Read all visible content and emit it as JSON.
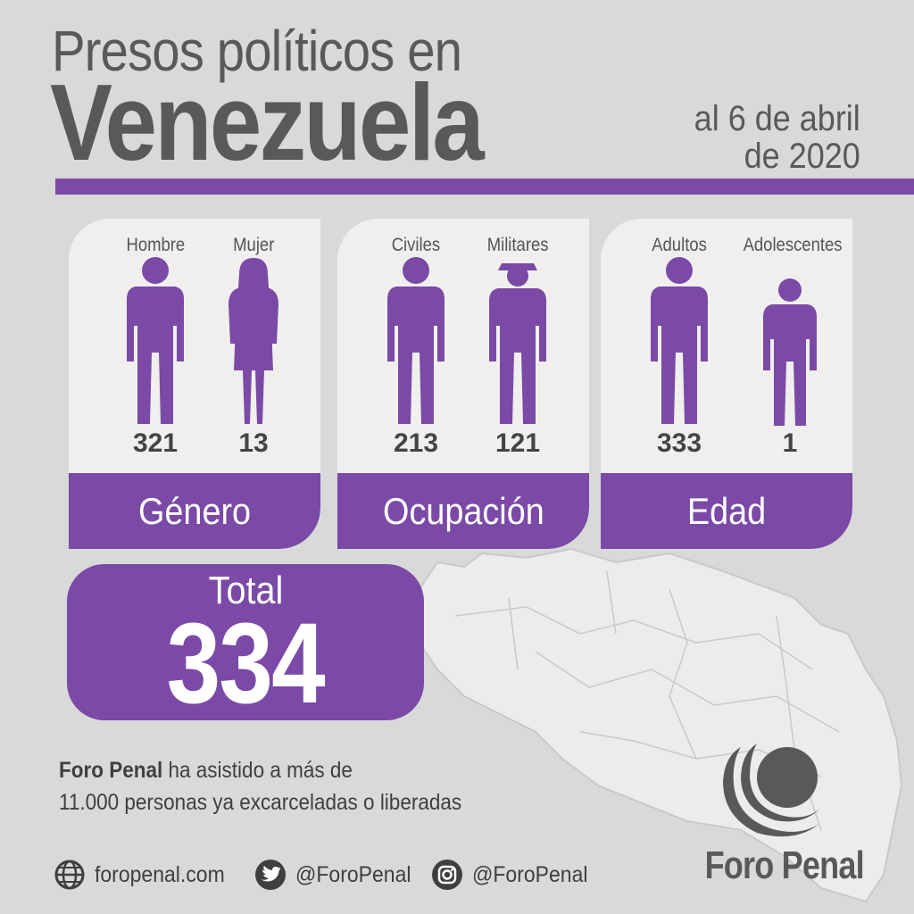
{
  "header": {
    "title_line1": "Presos políticos en",
    "title_line2": "Venezuela",
    "date_line1": "al 6 de abril",
    "date_line2": "de 2020"
  },
  "colors": {
    "accent": "#7a4aa6",
    "background": "#d9d9d9",
    "card": "#f0efee",
    "text": "#595959"
  },
  "cards": [
    {
      "label": "Género",
      "figures": [
        {
          "label": "Hombre",
          "value": "321",
          "icon": "man-silhouette-icon"
        },
        {
          "label": "Mujer",
          "value": "13",
          "icon": "woman-silhouette-icon"
        }
      ]
    },
    {
      "label": "Ocupación",
      "figures": [
        {
          "label": "Civiles",
          "value": "213",
          "icon": "civilian-silhouette-icon"
        },
        {
          "label": "Militares",
          "value": "121",
          "icon": "soldier-silhouette-icon"
        }
      ]
    },
    {
      "label": "Edad",
      "figures": [
        {
          "label": "Adultos",
          "value": "333",
          "icon": "adult-silhouette-icon"
        },
        {
          "label": "Adolescentes",
          "value": "1",
          "icon": "teen-silhouette-icon"
        }
      ]
    }
  ],
  "total": {
    "label": "Total",
    "value": "334"
  },
  "note": {
    "bold": "Foro Penal",
    "line1_rest": " ha asistido a más de",
    "line2": "11.000 personas ya excarceladas o liberadas"
  },
  "social": {
    "website": "foropenal.com",
    "twitter": "@ForoPenal",
    "instagram": "@ForoPenal"
  },
  "logo": {
    "text": "Foro Penal"
  }
}
